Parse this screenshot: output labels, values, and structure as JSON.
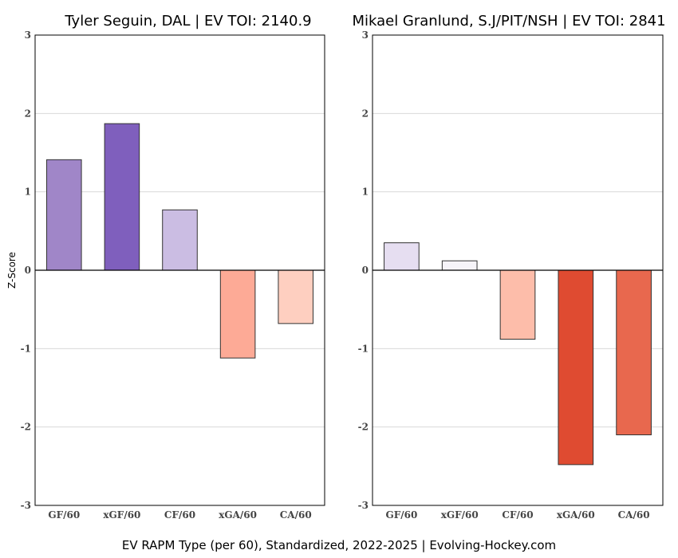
{
  "chart_data": [
    {
      "type": "bar",
      "title": "Tyler Seguin, DAL  |  EV TOI: 2140.9",
      "ylabel": "Z-Score",
      "ylim": [
        -3,
        3
      ],
      "yticks": [
        -3,
        -2,
        -1,
        0,
        1,
        2,
        3
      ],
      "grid": true,
      "categories": [
        "GF/60",
        "xGF/60",
        "CF/60",
        "xGA/60",
        "CA/60"
      ],
      "values": [
        1.41,
        1.87,
        0.77,
        -1.12,
        -0.68
      ],
      "colors": [
        "#a086c8",
        "#7f5fbd",
        "#cbbde3",
        "#fdaa96",
        "#fecfc0"
      ]
    },
    {
      "type": "bar",
      "title": "Mikael Granlund, S.J/PIT/NSH  |  EV TOI: 2841",
      "ylabel": "",
      "ylim": [
        -3,
        3
      ],
      "yticks": [
        -3,
        -2,
        -1,
        0,
        1,
        2,
        3
      ],
      "grid": true,
      "categories": [
        "GF/60",
        "xGF/60",
        "CF/60",
        "xGA/60",
        "CA/60"
      ],
      "values": [
        0.35,
        0.12,
        -0.88,
        -2.48,
        -2.1
      ],
      "colors": [
        "#e6def1",
        "#f6f4f9",
        "#fdbdaa",
        "#df4b31",
        "#e8684e"
      ]
    }
  ],
  "caption": "EV RAPM Type (per 60), Standardized, 2022-2025    |    Evolving-Hockey.com"
}
